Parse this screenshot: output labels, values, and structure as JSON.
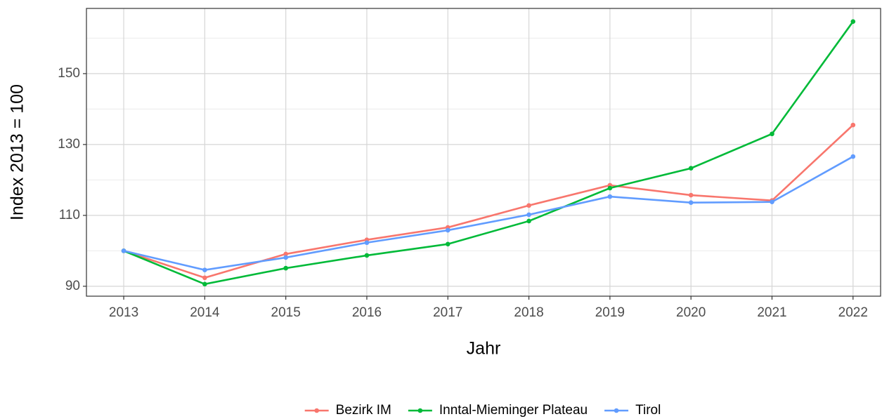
{
  "chart_data": {
    "type": "line",
    "x_label": "Jahr",
    "y_label": "Index  2013  = 100",
    "x": [
      2013,
      2014,
      2015,
      2016,
      2017,
      2018,
      2019,
      2020,
      2021,
      2022
    ],
    "xlim": [
      2012.54,
      2022.34
    ],
    "xticks": [
      2013,
      2014,
      2015,
      2016,
      2017,
      2018,
      2019,
      2020,
      2021,
      2022
    ],
    "ylim": [
      87.2,
      168.4
    ],
    "yticks": [
      90,
      110,
      130,
      150
    ],
    "y_minor_ticks": [
      100,
      120,
      140,
      160
    ],
    "grid": true,
    "legend": "bottom",
    "series": [
      {
        "name": "Bezirk IM",
        "color": "#F8766D",
        "values": [
          100,
          92.4,
          99.1,
          103.1,
          106.6,
          112.8,
          118.5,
          115.7,
          114.2,
          135.5
        ]
      },
      {
        "name": "Inntal-Mieminger Plateau",
        "color": "#00BA38",
        "values": [
          100,
          90.6,
          95.1,
          98.7,
          101.9,
          108.4,
          117.7,
          123.3,
          133.0,
          164.7
        ]
      },
      {
        "name": "Tirol",
        "color": "#619CFF",
        "values": [
          100,
          94.6,
          98.1,
          102.3,
          105.8,
          110.2,
          115.3,
          113.6,
          113.8,
          126.6
        ]
      }
    ]
  }
}
